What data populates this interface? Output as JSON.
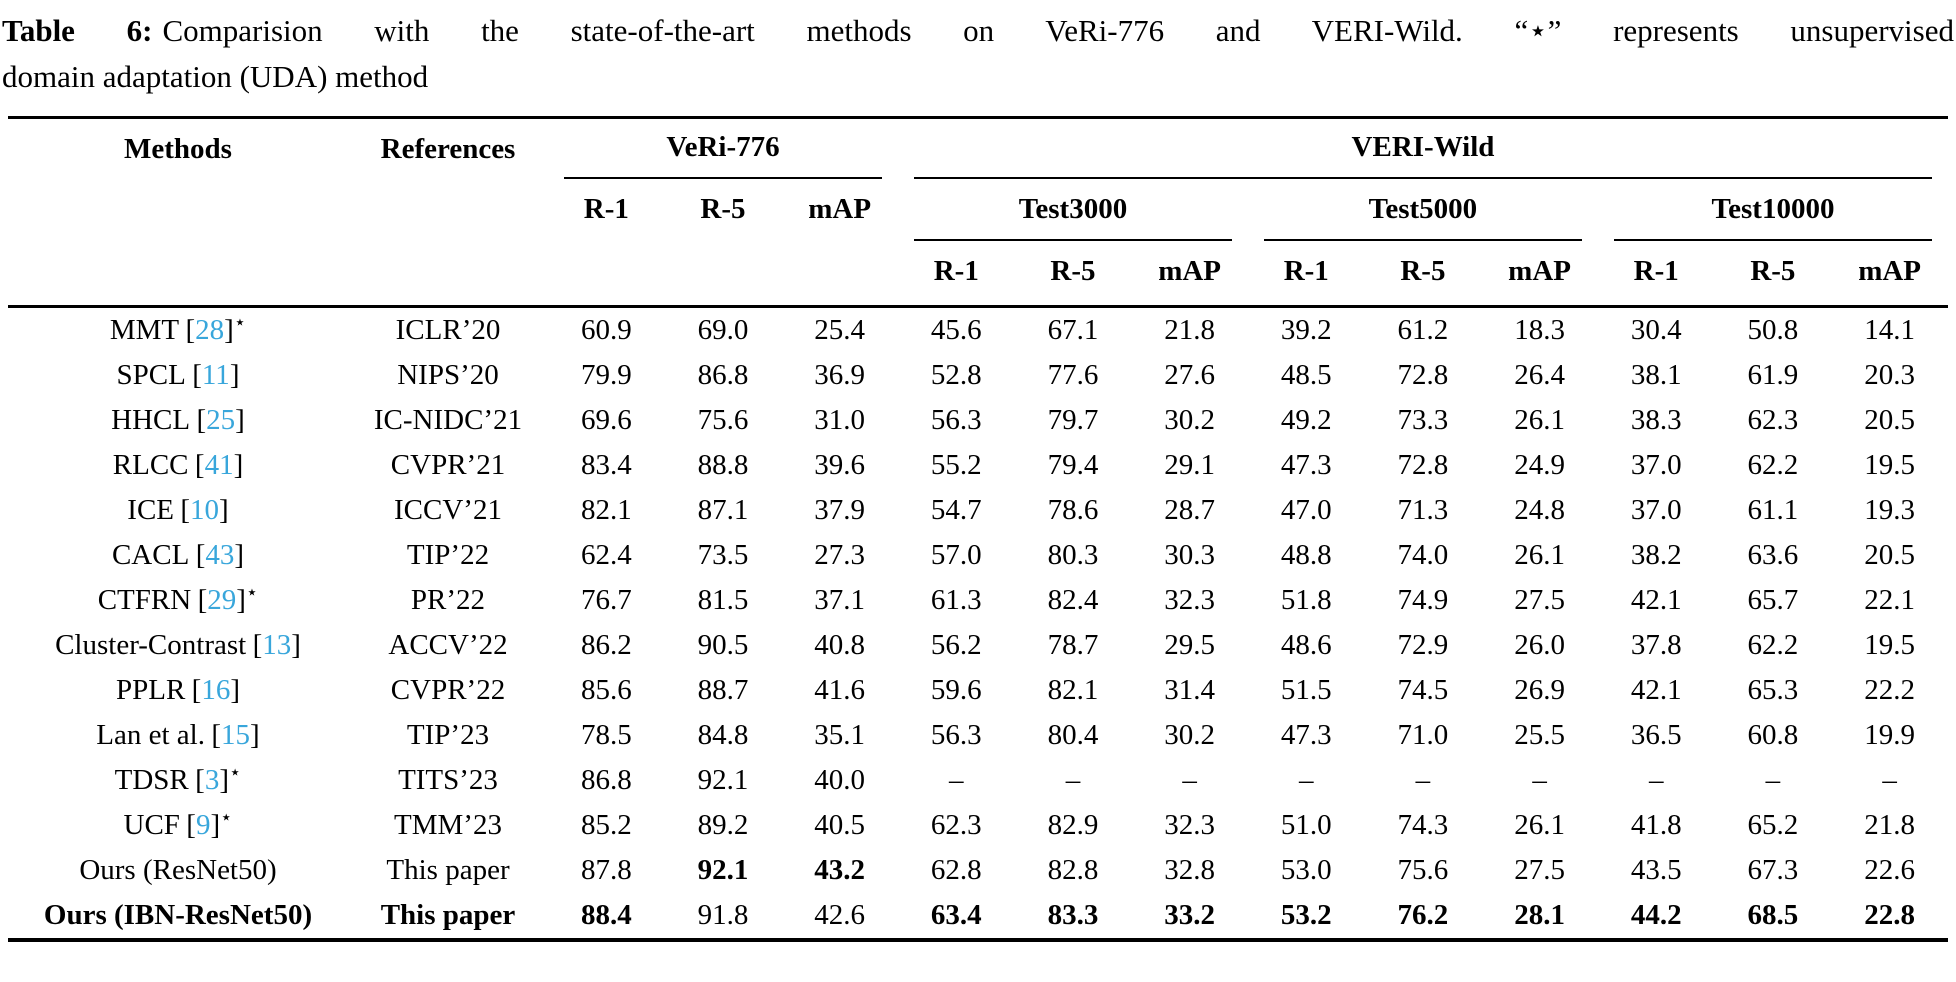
{
  "caption": {
    "label": "Table 6:",
    "line1": "Comparision with the state-of-the-art methods on VeRi-776 and VERI-Wild. “⋆” represents unsupervised",
    "line2": "domain adaptation (UDA) method",
    "full_text": "Table 6: Comparision with the state-of-the-art methods on VeRi-776 and VERI-Wild. “⋆” represents unsupervised domain adaptation (UDA) method"
  },
  "colors": {
    "citation_link": "#38a6db",
    "text": "#000000",
    "background": "#ffffff"
  },
  "table": {
    "star_symbol": "⋆",
    "dash": "–",
    "header": {
      "methods": "Methods",
      "references": "References",
      "dataset1": "VeRi-776",
      "dataset2": "VERI-Wild",
      "subsets": [
        "Test3000",
        "Test5000",
        "Test10000"
      ],
      "metrics": [
        "R-1",
        "R-5",
        "mAP"
      ]
    },
    "rows": [
      {
        "method": "MMT",
        "cite": "28",
        "star": true,
        "ref": "ICLR’20",
        "values": [
          "60.9",
          "69.0",
          "25.4",
          "45.6",
          "67.1",
          "21.8",
          "39.2",
          "61.2",
          "18.3",
          "30.4",
          "50.8",
          "14.1"
        ],
        "bold": []
      },
      {
        "method": "SPCL",
        "cite": "11",
        "star": false,
        "ref": "NIPS’20",
        "values": [
          "79.9",
          "86.8",
          "36.9",
          "52.8",
          "77.6",
          "27.6",
          "48.5",
          "72.8",
          "26.4",
          "38.1",
          "61.9",
          "20.3"
        ],
        "bold": []
      },
      {
        "method": "HHCL",
        "cite": "25",
        "star": false,
        "ref": "IC-NIDC’21",
        "values": [
          "69.6",
          "75.6",
          "31.0",
          "56.3",
          "79.7",
          "30.2",
          "49.2",
          "73.3",
          "26.1",
          "38.3",
          "62.3",
          "20.5"
        ],
        "bold": []
      },
      {
        "method": "RLCC",
        "cite": "41",
        "star": false,
        "ref": "CVPR’21",
        "values": [
          "83.4",
          "88.8",
          "39.6",
          "55.2",
          "79.4",
          "29.1",
          "47.3",
          "72.8",
          "24.9",
          "37.0",
          "62.2",
          "19.5"
        ],
        "bold": []
      },
      {
        "method": "ICE",
        "cite": "10",
        "star": false,
        "ref": "ICCV’21",
        "values": [
          "82.1",
          "87.1",
          "37.9",
          "54.7",
          "78.6",
          "28.7",
          "47.0",
          "71.3",
          "24.8",
          "37.0",
          "61.1",
          "19.3"
        ],
        "bold": []
      },
      {
        "method": "CACL",
        "cite": "43",
        "star": false,
        "ref": "TIP’22",
        "values": [
          "62.4",
          "73.5",
          "27.3",
          "57.0",
          "80.3",
          "30.3",
          "48.8",
          "74.0",
          "26.1",
          "38.2",
          "63.6",
          "20.5"
        ],
        "bold": []
      },
      {
        "method": "CTFRN",
        "cite": "29",
        "star": true,
        "ref": "PR’22",
        "values": [
          "76.7",
          "81.5",
          "37.1",
          "61.3",
          "82.4",
          "32.3",
          "51.8",
          "74.9",
          "27.5",
          "42.1",
          "65.7",
          "22.1"
        ],
        "bold": []
      },
      {
        "method": "Cluster-Contrast",
        "cite": "13",
        "star": false,
        "ref": "ACCV’22",
        "values": [
          "86.2",
          "90.5",
          "40.8",
          "56.2",
          "78.7",
          "29.5",
          "48.6",
          "72.9",
          "26.0",
          "37.8",
          "62.2",
          "19.5"
        ],
        "bold": []
      },
      {
        "method": "PPLR",
        "cite": "16",
        "star": false,
        "ref": "CVPR’22",
        "values": [
          "85.6",
          "88.7",
          "41.6",
          "59.6",
          "82.1",
          "31.4",
          "51.5",
          "74.5",
          "26.9",
          "42.1",
          "65.3",
          "22.2"
        ],
        "bold": []
      },
      {
        "method": "Lan et al.",
        "cite": "15",
        "star": false,
        "ref": "TIP’23",
        "values": [
          "78.5",
          "84.8",
          "35.1",
          "56.3",
          "80.4",
          "30.2",
          "47.3",
          "71.0",
          "25.5",
          "36.5",
          "60.8",
          "19.9"
        ],
        "bold": []
      },
      {
        "method": "TDSR",
        "cite": "3",
        "star": true,
        "ref": "TITS’23",
        "values": [
          "86.8",
          "92.1",
          "40.0",
          "–",
          "–",
          "–",
          "–",
          "–",
          "–",
          "–",
          "–",
          "–"
        ],
        "bold": []
      },
      {
        "method": "UCF",
        "cite": "9",
        "star": true,
        "ref": "TMM’23",
        "values": [
          "85.2",
          "89.2",
          "40.5",
          "62.3",
          "82.9",
          "32.3",
          "51.0",
          "74.3",
          "26.1",
          "41.8",
          "65.2",
          "21.8"
        ],
        "bold": []
      },
      {
        "method": "Ours (ResNet50)",
        "cite": null,
        "star": false,
        "ref": "This paper",
        "bold_label": false,
        "values": [
          "87.8",
          "92.1",
          "43.2",
          "62.8",
          "82.8",
          "32.8",
          "53.0",
          "75.6",
          "27.5",
          "43.5",
          "67.3",
          "22.6"
        ],
        "bold": [
          1,
          2
        ]
      },
      {
        "method": "Ours (IBN-ResNet50)",
        "cite": null,
        "star": false,
        "ref": "This paper",
        "bold_label": true,
        "values": [
          "88.4",
          "91.8",
          "42.6",
          "63.4",
          "83.3",
          "33.2",
          "53.2",
          "76.2",
          "28.1",
          "44.2",
          "68.5",
          "22.8"
        ],
        "bold": [
          0,
          3,
          4,
          5,
          6,
          7,
          8,
          9,
          10,
          11
        ]
      }
    ]
  }
}
